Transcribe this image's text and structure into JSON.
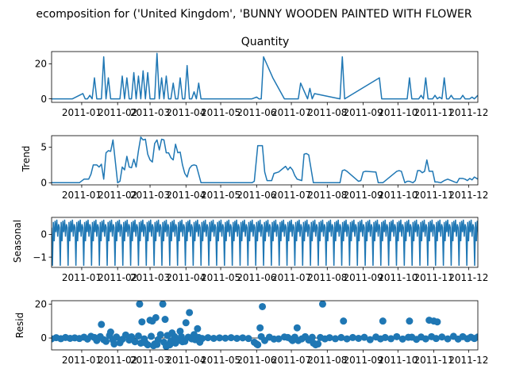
{
  "suptitle": "ecomposition for ('United Kingdom', 'BUNNY WOODEN PAINTED WITH FLOWER",
  "chart_data": [
    {
      "type": "line",
      "title": "Quantity",
      "ylabel": "",
      "ylim": [
        -2,
        27
      ],
      "yticks": [
        0,
        20
      ],
      "xlim": [
        "2010-12-06",
        "2011-12-09"
      ],
      "xtick_labels": [
        "2011-01",
        "2011-02",
        "2011-03",
        "2011-04",
        "2011-05",
        "2011-06",
        "2011-07",
        "2011-08",
        "2011-09",
        "2011-10",
        "2011-11",
        "2011-12"
      ],
      "color": "#1f77b4",
      "series": [
        {
          "x": [
            "2010-12-06",
            "2010-12-24",
            "2011-01-02",
            "2011-01-04",
            "2011-01-06",
            "2011-01-08",
            "2011-01-10",
            "2011-01-12",
            "2011-01-14",
            "2011-01-16",
            "2011-01-18",
            "2011-01-20",
            "2011-01-22",
            "2011-01-24",
            "2011-01-26",
            "2011-01-28",
            "2011-01-30",
            "2011-02-01",
            "2011-02-03",
            "2011-02-05",
            "2011-02-07",
            "2011-02-09",
            "2011-02-11",
            "2011-02-13",
            "2011-02-15",
            "2011-02-17",
            "2011-02-19",
            "2011-02-21",
            "2011-02-23",
            "2011-02-25",
            "2011-02-27",
            "2011-03-01",
            "2011-03-03",
            "2011-03-05",
            "2011-03-07",
            "2011-03-09",
            "2011-03-11",
            "2011-03-13",
            "2011-03-15",
            "2011-03-17",
            "2011-03-19",
            "2011-03-21",
            "2011-03-23",
            "2011-03-25",
            "2011-03-27",
            "2011-03-29",
            "2011-03-31",
            "2011-04-02",
            "2011-04-04",
            "2011-04-06",
            "2011-04-08",
            "2011-04-10",
            "2011-04-12",
            "2011-04-14",
            "2011-05-01",
            "2011-05-28",
            "2011-06-01",
            "2011-06-03",
            "2011-06-05",
            "2011-06-07",
            "2011-06-15",
            "2011-06-25",
            "2011-06-27",
            "2011-06-29",
            "2011-07-03",
            "2011-07-05",
            "2011-07-07",
            "2011-07-09",
            "2011-07-15",
            "2011-07-17",
            "2011-07-19",
            "2011-07-21",
            "2011-08-12",
            "2011-08-14",
            "2011-08-16",
            "2011-09-15",
            "2011-09-17",
            "2011-09-19",
            "2011-10-01",
            "2011-10-03",
            "2011-10-05",
            "2011-10-07",
            "2011-10-09",
            "2011-10-11",
            "2011-10-13",
            "2011-10-15",
            "2011-10-17",
            "2011-10-19",
            "2011-10-21",
            "2011-10-23",
            "2011-10-25",
            "2011-10-27",
            "2011-10-29",
            "2011-10-31",
            "2011-11-02",
            "2011-11-04",
            "2011-11-06",
            "2011-11-08",
            "2011-11-10",
            "2011-11-12",
            "2011-11-14",
            "2011-11-16",
            "2011-11-18",
            "2011-11-20",
            "2011-11-22",
            "2011-11-24",
            "2011-11-26",
            "2011-11-28",
            "2011-11-30",
            "2011-12-02",
            "2011-12-04",
            "2011-12-06",
            "2011-12-09"
          ],
          "y": [
            0,
            0,
            3,
            0,
            0,
            2,
            0,
            12,
            0,
            0,
            0,
            24,
            0,
            12,
            0,
            0,
            0,
            0,
            0,
            13,
            0,
            12,
            0,
            0,
            15,
            0,
            13,
            0,
            16,
            0,
            15,
            0,
            0,
            0,
            26,
            0,
            12,
            0,
            13,
            0,
            0,
            9,
            0,
            0,
            12,
            0,
            0,
            19,
            0,
            0,
            4,
            0,
            9,
            0,
            0,
            0,
            1,
            0,
            0,
            24,
            12,
            0,
            0,
            0,
            0,
            0,
            0,
            9,
            0,
            6,
            0,
            3,
            0,
            24,
            0,
            12,
            0,
            0,
            0,
            0,
            0,
            0,
            0,
            12,
            0,
            0,
            0,
            0,
            2,
            0,
            12,
            0,
            0,
            0,
            2,
            0,
            1,
            0,
            12,
            0,
            0,
            2,
            0,
            0,
            0,
            0,
            2,
            0,
            0,
            0,
            1,
            0,
            2
          ]
        }
      ]
    },
    {
      "type": "line",
      "title": "",
      "ylabel": "Trend",
      "ylim": [
        -0.3,
        6.6
      ],
      "yticks": [
        0,
        5
      ],
      "xlim": [
        "2010-12-06",
        "2011-12-09"
      ],
      "xtick_labels": [
        "2011-01",
        "2011-02",
        "2011-03",
        "2011-04",
        "2011-05",
        "2011-06",
        "2011-07",
        "2011-08",
        "2011-09",
        "2011-10",
        "2011-11",
        "2011-12"
      ],
      "color": "#1f77b4",
      "series": [
        {
          "x": [
            "2010-12-06",
            "2010-12-18",
            "2010-12-30",
            "2011-01-03",
            "2011-01-07",
            "2011-01-09",
            "2011-01-11",
            "2011-01-14",
            "2011-01-16",
            "2011-01-18",
            "2011-01-20",
            "2011-01-22",
            "2011-01-24",
            "2011-01-26",
            "2011-01-28",
            "2011-02-01",
            "2011-02-03",
            "2011-02-05",
            "2011-02-07",
            "2011-02-09",
            "2011-02-11",
            "2011-02-13",
            "2011-02-15",
            "2011-02-17",
            "2011-02-19",
            "2011-02-21",
            "2011-02-23",
            "2011-02-25",
            "2011-02-27",
            "2011-03-01",
            "2011-03-03",
            "2011-03-05",
            "2011-03-07",
            "2011-03-09",
            "2011-03-11",
            "2011-03-13",
            "2011-03-15",
            "2011-03-17",
            "2011-03-19",
            "2011-03-21",
            "2011-03-23",
            "2011-03-25",
            "2011-03-27",
            "2011-03-29",
            "2011-03-31",
            "2011-04-02",
            "2011-04-04",
            "2011-04-06",
            "2011-04-08",
            "2011-04-10",
            "2011-04-14",
            "2011-04-16",
            "2011-05-28",
            "2011-05-30",
            "2011-06-02",
            "2011-06-04",
            "2011-06-06",
            "2011-06-08",
            "2011-06-10",
            "2011-06-14",
            "2011-06-16",
            "2011-06-20",
            "2011-06-26",
            "2011-06-28",
            "2011-06-30",
            "2011-07-02",
            "2011-07-04",
            "2011-07-06",
            "2011-07-10",
            "2011-07-12",
            "2011-07-14",
            "2011-07-16",
            "2011-07-20",
            "2011-07-22",
            "2011-07-25",
            "2011-07-27",
            "2011-07-29",
            "2011-07-31",
            "2011-08-12",
            "2011-08-14",
            "2011-08-16",
            "2011-08-18",
            "2011-08-28",
            "2011-08-30",
            "2011-09-01",
            "2011-09-03",
            "2011-09-12",
            "2011-09-14",
            "2011-09-16",
            "2011-09-18",
            "2011-09-30",
            "2011-10-02",
            "2011-10-04",
            "2011-10-07",
            "2011-10-09",
            "2011-10-11",
            "2011-10-14",
            "2011-10-16",
            "2011-10-18",
            "2011-10-20",
            "2011-10-22",
            "2011-10-24",
            "2011-10-26",
            "2011-10-28",
            "2011-10-31",
            "2011-11-02",
            "2011-11-04",
            "2011-11-07",
            "2011-11-10",
            "2011-11-13",
            "2011-11-16",
            "2011-11-19",
            "2011-11-21",
            "2011-11-23",
            "2011-11-26",
            "2011-11-28",
            "2011-11-30",
            "2011-12-02",
            "2011-12-04",
            "2011-12-06",
            "2011-12-09"
          ],
          "y": [
            0,
            0,
            0,
            0.5,
            0.5,
            1.2,
            2.5,
            2.5,
            2.2,
            2.6,
            0.5,
            4.2,
            4.5,
            4.4,
            6.0,
            0.0,
            0.2,
            2.2,
            1.8,
            3.7,
            2.2,
            2.1,
            3.3,
            2.2,
            4.5,
            6.4,
            6.0,
            6.1,
            4.0,
            3.2,
            2.9,
            5.5,
            6.0,
            4.6,
            6.1,
            6.0,
            4.2,
            4.2,
            3.5,
            3.2,
            5.4,
            4.2,
            4.3,
            2.5,
            1.3,
            0.8,
            2.0,
            2.4,
            2.5,
            2.4,
            0.0,
            0.0,
            0.0,
            0.2,
            5.2,
            5.2,
            5.2,
            1.5,
            0.3,
            0.3,
            1.3,
            1.5,
            2.3,
            1.8,
            2.2,
            1.8,
            1.0,
            0.5,
            0.3,
            4.0,
            4.1,
            3.9,
            0.0,
            0.0,
            0,
            0,
            0,
            0,
            0.0,
            1.7,
            1.8,
            1.6,
            0.2,
            0.3,
            1.5,
            1.6,
            1.5,
            0.0,
            0.0,
            0.0,
            1.6,
            1.7,
            1.6,
            0.0,
            0.2,
            0.2,
            0.0,
            0.3,
            1.7,
            1.7,
            1.4,
            1.6,
            3.2,
            1.6,
            1.6,
            0.1,
            0.1,
            0.0,
            0.3,
            0.5,
            0.3,
            0.1,
            0.0,
            0.6,
            0.6,
            0.5,
            0.3,
            0.6,
            0.4,
            0.8,
            0.5
          ]
        }
      ]
    },
    {
      "type": "line",
      "title": "",
      "ylabel": "Seasonal",
      "ylim": [
        -1.45,
        0.75
      ],
      "yticks": [
        0,
        -1
      ],
      "xlim": [
        "2010-12-06",
        "2011-12-09"
      ],
      "xtick_labels": [
        "2011-01",
        "2011-02",
        "2011-03",
        "2011-04",
        "2011-05",
        "2011-06",
        "2011-07",
        "2011-08",
        "2011-09",
        "2011-10",
        "2011-11",
        "2011-12"
      ],
      "color": "#1f77b4",
      "period_pattern": [
        0.3,
        -1.38,
        0.55,
        -0.3,
        0.6,
        0.1,
        0.65,
        -0.1,
        0.45
      ],
      "start": "2010-12-06",
      "step_days": 0.75
    },
    {
      "type": "scatter",
      "title": "",
      "ylabel": "Resid",
      "ylim": [
        -7,
        22
      ],
      "yticks": [
        0,
        20
      ],
      "xlim": [
        "2010-12-06",
        "2011-12-09"
      ],
      "xtick_labels": [
        "2011-01",
        "2011-02",
        "2011-03",
        "2011-04",
        "2011-05",
        "2011-06",
        "2011-07",
        "2011-08",
        "2011-09",
        "2011-10",
        "2011-11",
        "2011-12"
      ],
      "color": "#1f77b4",
      "series": [
        {
          "x": [
            "2010-12-06",
            "2010-12-10",
            "2010-12-14",
            "2010-12-18",
            "2010-12-22",
            "2010-12-26",
            "2010-12-30",
            "2011-01-03",
            "2011-01-06",
            "2011-01-09",
            "2011-01-12",
            "2011-01-14",
            "2011-01-17",
            "2011-01-20",
            "2011-01-22",
            "2011-01-25",
            "2011-01-28",
            "2011-01-31",
            "2011-02-03",
            "2011-02-05",
            "2011-02-08",
            "2011-02-11",
            "2011-02-13",
            "2011-02-16",
            "2011-02-19",
            "2011-02-21",
            "2011-02-24",
            "2011-02-27",
            "2011-03-02",
            "2011-03-05",
            "2011-03-08",
            "2011-03-10",
            "2011-03-13",
            "2011-03-16",
            "2011-03-19",
            "2011-03-22",
            "2011-03-25",
            "2011-03-28",
            "2011-03-31",
            "2011-04-03",
            "2011-04-06",
            "2011-04-09",
            "2011-04-12",
            "2011-04-15",
            "2011-04-20",
            "2011-04-25",
            "2011-04-30",
            "2011-05-05",
            "2011-05-10",
            "2011-05-15",
            "2011-05-20",
            "2011-05-25",
            "2011-05-30",
            "2011-06-02",
            "2011-06-05",
            "2011-06-08",
            "2011-06-12",
            "2011-06-16",
            "2011-06-20",
            "2011-06-25",
            "2011-06-28",
            "2011-07-01",
            "2011-07-04",
            "2011-07-07",
            "2011-07-10",
            "2011-07-13",
            "2011-07-16",
            "2011-07-19",
            "2011-07-22",
            "2011-07-26",
            "2011-07-30",
            "2011-08-03",
            "2011-08-08",
            "2011-08-13",
            "2011-08-18",
            "2011-08-23",
            "2011-08-28",
            "2011-09-02",
            "2011-09-07",
            "2011-09-12",
            "2011-09-16",
            "2011-09-20",
            "2011-09-25",
            "2011-09-30",
            "2011-10-05",
            "2011-10-10",
            "2011-10-13",
            "2011-10-17",
            "2011-10-21",
            "2011-10-25",
            "2011-10-30",
            "2011-11-03",
            "2011-11-08",
            "2011-11-13",
            "2011-11-18",
            "2011-11-22",
            "2011-11-26",
            "2011-11-30",
            "2011-12-03",
            "2011-12-06",
            "2011-12-09",
            "2011-01-18",
            "2011-02-20",
            "2011-02-22",
            "2011-03-01",
            "2011-03-03",
            "2011-03-06",
            "2011-03-12",
            "2011-03-14",
            "2011-03-20",
            "2011-03-27",
            "2011-04-01",
            "2011-04-04",
            "2011-04-08",
            "2011-04-11",
            "2011-06-04",
            "2011-06-06",
            "2011-07-06",
            "2011-07-28",
            "2011-08-15",
            "2011-09-18",
            "2011-10-11",
            "2011-10-28",
            "2011-11-01",
            "2011-11-04",
            "2011-01-26",
            "2011-01-29",
            "2011-02-25",
            "2011-03-04",
            "2011-03-07",
            "2011-03-15",
            "2011-03-18",
            "2011-03-23",
            "2011-03-29",
            "2011-04-13",
            "2011-06-01",
            "2011-07-02",
            "2011-07-20",
            "2011-07-24"
          ],
          "y": [
            -0.5,
            0.2,
            -0.4,
            0.3,
            -0.2,
            0.1,
            -0.3,
            0.5,
            -0.6,
            1.0,
            0.3,
            -1.5,
            0.8,
            -1.0,
            -2.0,
            1.5,
            -1.2,
            0.6,
            -2.8,
            -0.8,
            1.8,
            -1.2,
            0.7,
            -2.2,
            1.2,
            -3.0,
            -0.5,
            -4.0,
            1.0,
            -3.5,
            -1.0,
            2.0,
            -2.5,
            1.5,
            -1.8,
            0.9,
            -1.5,
            0.8,
            -2.0,
            0.5,
            -0.5,
            -1.0,
            0.3,
            -0.3,
            0.2,
            -0.2,
            0.1,
            -0.1,
            0.2,
            -0.2,
            0.1,
            -0.3,
            -2.5,
            -4.0,
            0.8,
            -1.5,
            0.5,
            -0.6,
            -0.5,
            0.6,
            0.3,
            -0.8,
            0.5,
            -1.5,
            -0.5,
            0.8,
            -1.2,
            0.4,
            -4.0,
            0.3,
            -0.5,
            0.2,
            -0.4,
            0.3,
            -0.5,
            0.3,
            -0.2,
            0.4,
            -1.0,
            0.6,
            -0.5,
            0.3,
            -0.4,
            0.8,
            -0.6,
            0.4,
            0.5,
            -0.8,
            0.6,
            -0.5,
            0.8,
            -0.3,
            0.6,
            -0.5,
            1.0,
            -0.6,
            0.8,
            -0.4,
            0.5,
            -0.3,
            0.6,
            8.0,
            20.0,
            9.5,
            10.5,
            10.0,
            12.0,
            20.0,
            11.0,
            3.0,
            4.0,
            9.0,
            15.0,
            2.0,
            5.5,
            6.0,
            18.5,
            6.0,
            20.0,
            10.0,
            10.0,
            10.0,
            10.5,
            10.0,
            9.5,
            3.5,
            -3.5,
            -2.8,
            -4.5,
            -3.8,
            -5.0,
            -4.0,
            -3.0,
            -2.2,
            -2.5,
            -3.5,
            -1.5,
            -3.0,
            -3.5
          ]
        }
      ]
    }
  ]
}
